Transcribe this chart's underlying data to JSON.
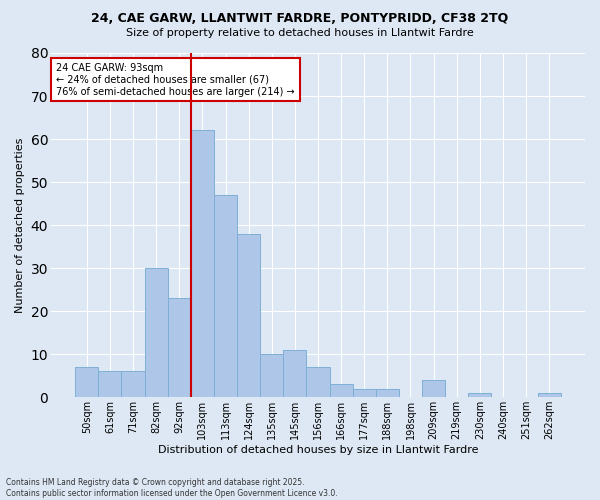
{
  "title1": "24, CAE GARW, LLANTWIT FARDRE, PONTYPRIDD, CF38 2TQ",
  "title2": "Size of property relative to detached houses in Llantwit Fardre",
  "xlabel": "Distribution of detached houses by size in Llantwit Fardre",
  "ylabel": "Number of detached properties",
  "categories": [
    "50sqm",
    "61sqm",
    "71sqm",
    "82sqm",
    "92sqm",
    "103sqm",
    "113sqm",
    "124sqm",
    "135sqm",
    "145sqm",
    "156sqm",
    "166sqm",
    "177sqm",
    "188sqm",
    "198sqm",
    "209sqm",
    "219sqm",
    "230sqm",
    "240sqm",
    "251sqm",
    "262sqm"
  ],
  "values": [
    7,
    6,
    6,
    30,
    23,
    62,
    47,
    38,
    10,
    11,
    7,
    3,
    2,
    2,
    0,
    4,
    0,
    1,
    0,
    0,
    1
  ],
  "bar_color": "#aec6e8",
  "bar_edge_color": "#7dafd6",
  "vline_x": 4.5,
  "vline_color": "#cc0000",
  "annotation_text": "24 CAE GARW: 93sqm\n← 24% of detached houses are smaller (67)\n76% of semi-detached houses are larger (214) →",
  "annotation_box_color": "#ffffff",
  "annotation_box_edge": "#cc0000",
  "background_color": "#dde8f4",
  "grid_color": "#ffffff",
  "footer": "Contains HM Land Registry data © Crown copyright and database right 2025.\nContains public sector information licensed under the Open Government Licence v3.0.",
  "ylim": [
    0,
    80
  ],
  "yticks": [
    0,
    10,
    20,
    30,
    40,
    50,
    60,
    70,
    80
  ]
}
